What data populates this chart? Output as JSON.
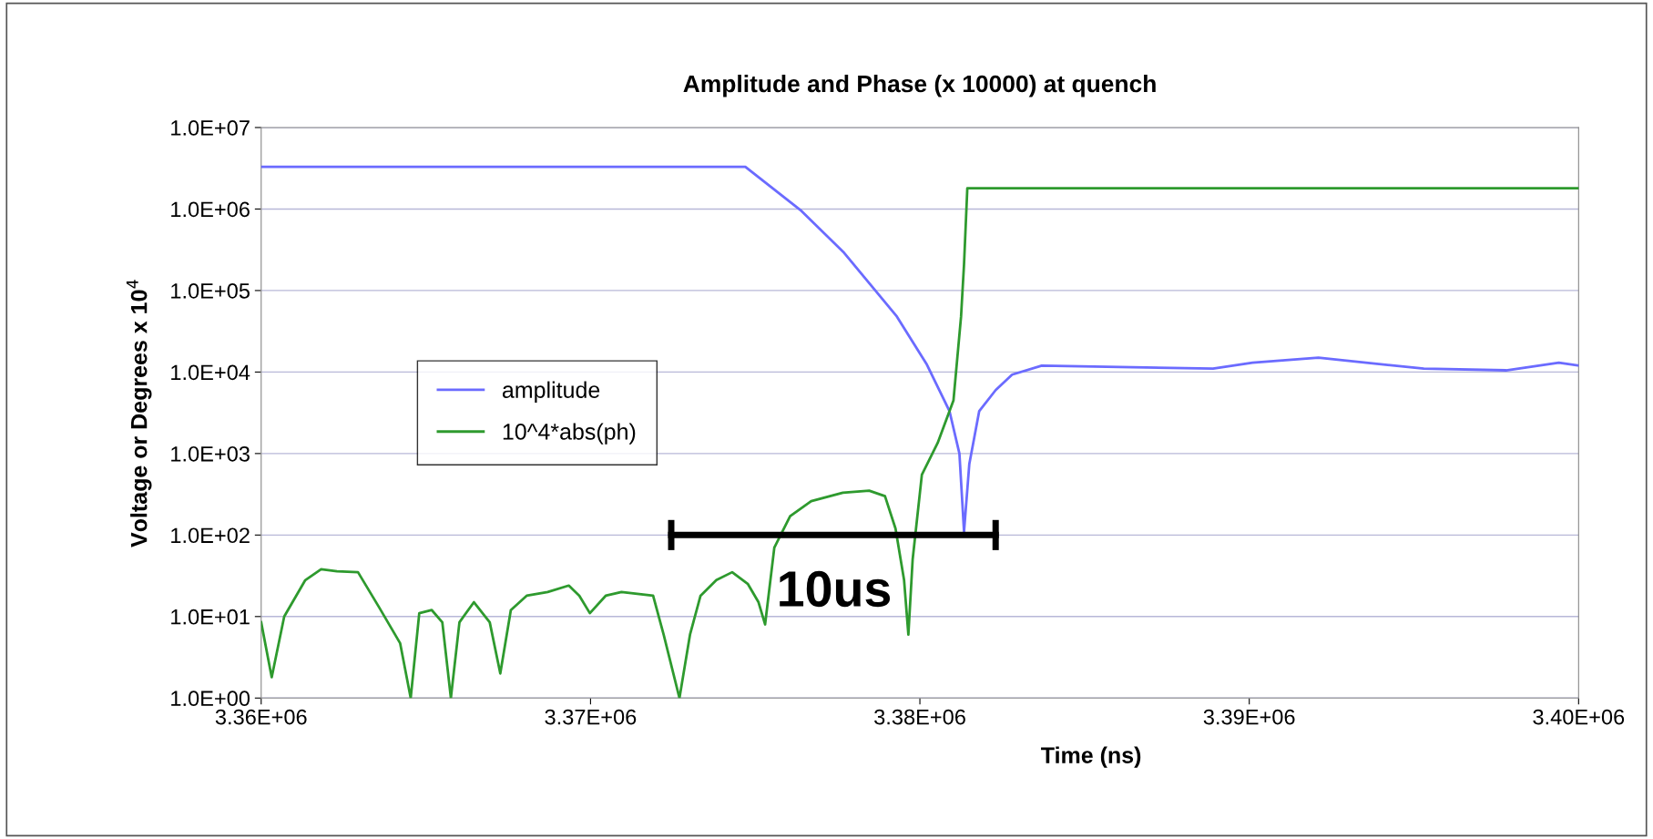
{
  "chart_data": {
    "type": "line",
    "title": "Amplitude and Phase (x 10000) at quench",
    "xlabel": "Time (ns)",
    "ylabel": "Voltage or Degrees x 10$^{4}$",
    "log": true,
    "grid": "y",
    "legend": "center left",
    "xlim": [
      3360000,
      3400000
    ],
    "xticks": [
      {
        "value": 3360000,
        "label": "3.36E+06"
      },
      {
        "value": 3370000,
        "label": "3.37E+06"
      },
      {
        "value": 3380000,
        "label": "3.38E+06"
      },
      {
        "value": 3390000,
        "label": "3.39E+06"
      },
      {
        "value": 3400000,
        "label": "3.40E+06"
      }
    ],
    "ylim": [
      1,
      10000000
    ],
    "yticks": [
      {
        "value": 1,
        "label": "1.0E+00"
      },
      {
        "value": 10,
        "label": "1.0E+01"
      },
      {
        "value": 100,
        "label": "1.0E+02"
      },
      {
        "value": 1000,
        "label": "1.0E+03"
      },
      {
        "value": 10000,
        "label": "1.0E+04"
      },
      {
        "value": 100000,
        "label": "1.0E+05"
      },
      {
        "value": 1000000,
        "label": "1.0E+06"
      },
      {
        "value": 10000000,
        "label": "1.0E+07"
      }
    ],
    "annotations": [
      "10us"
    ],
    "series": [
      {
        "color": "#000000",
        "x": [
          3372450,
          3382300
        ],
        "values": [
          100,
          100
        ]
      },
      {
        "name": "amplitude",
        "color": "#6b6bff",
        "x": [
          3360000,
          3374700,
          3376400,
          3377700,
          3379300,
          3380200,
          3380900,
          3381200,
          3381340,
          3381500,
          3381800,
          3382300,
          3382800,
          3383700,
          3388900,
          3390100,
          3392100,
          3395300,
          3397800,
          3399400,
          3400000
        ],
        "values": [
          3300000,
          3300000,
          950000,
          290000,
          48000,
          12600,
          3300,
          1000,
          110,
          740,
          3300,
          6000,
          9300,
          12000,
          11000,
          13000,
          15000,
          11000,
          10500,
          13000,
          12000
        ]
      },
      {
        "name": "10^4*abs(ph)",
        "color": "#2e9a2e",
        "x": [
          3360000,
          3360320,
          3360700,
          3361340,
          3361820,
          3362300,
          3362940,
          3363580,
          3364220,
          3364540,
          3364800,
          3365180,
          3365500,
          3365760,
          3366020,
          3366460,
          3366940,
          3367260,
          3367580,
          3368060,
          3368700,
          3369340,
          3369660,
          3369980,
          3370460,
          3370940,
          3371900,
          3372220,
          3372700,
          3373020,
          3373340,
          3373820,
          3374300,
          3374780,
          3375100,
          3375300,
          3375580,
          3376060,
          3376700,
          3377660,
          3378460,
          3378940,
          3379260,
          3379520,
          3379650,
          3379780,
          3380060,
          3380540,
          3381020,
          3381250,
          3381340,
          3381440,
          3400000
        ],
        "values": [
          8.5,
          1.8,
          10,
          28,
          38,
          36,
          35,
          13,
          4.7,
          1,
          11,
          12,
          8.5,
          1,
          8.5,
          15,
          8.5,
          2,
          12,
          18,
          20,
          24,
          18,
          11,
          18,
          20,
          18,
          6,
          1,
          6,
          18,
          28,
          35,
          25,
          15,
          8,
          70,
          170,
          260,
          330,
          350,
          300,
          120,
          28,
          6,
          50,
          550,
          1350,
          4500,
          48000,
          210000,
          1800000,
          1800000
        ]
      }
    ]
  }
}
